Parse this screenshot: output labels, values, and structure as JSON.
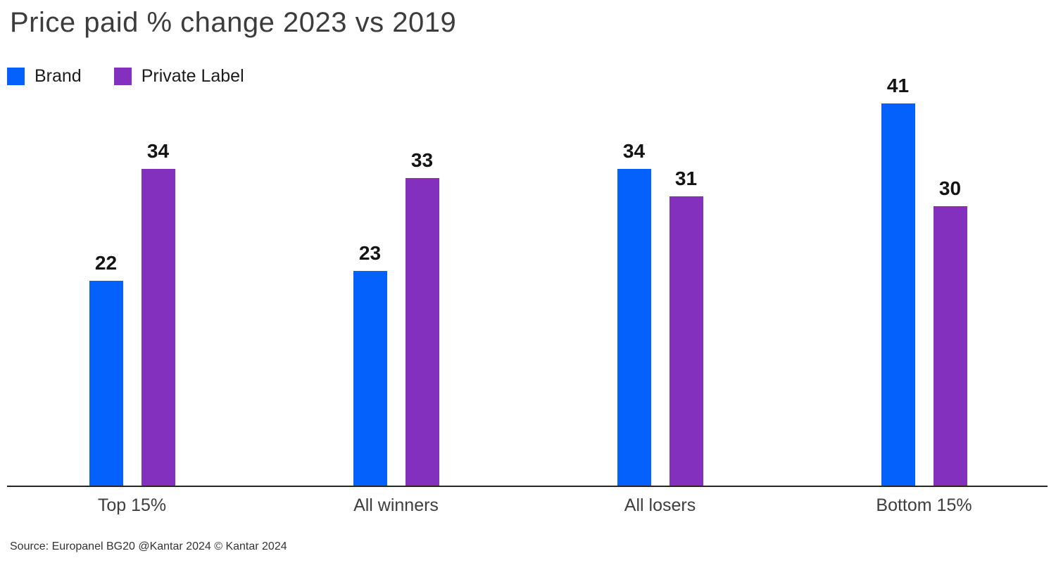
{
  "title": "Price paid % change 2023 vs 2019",
  "source": "Source: Europanel BG20 @Kantar 2024 © Kantar 2024",
  "colors": {
    "brand": "#0561fc",
    "private_label": "#8330be",
    "axis": "#262626"
  },
  "chart_data": {
    "type": "bar",
    "title": "Price paid % change 2023 vs 2019",
    "categories": [
      "Top 15%",
      "All winners",
      "All losers",
      "Bottom 15%"
    ],
    "series": [
      {
        "name": "Brand",
        "color": "#0561fc",
        "values": [
          22,
          23,
          34,
          41
        ]
      },
      {
        "name": "Private Label",
        "color": "#8330be",
        "values": [
          34,
          33,
          31,
          30
        ]
      }
    ],
    "xlabel": "",
    "ylabel": "",
    "ylim": [
      0,
      45
    ],
    "grid": false,
    "legend_position": "top-left",
    "value_labels": true,
    "y_axis_visible": false
  }
}
